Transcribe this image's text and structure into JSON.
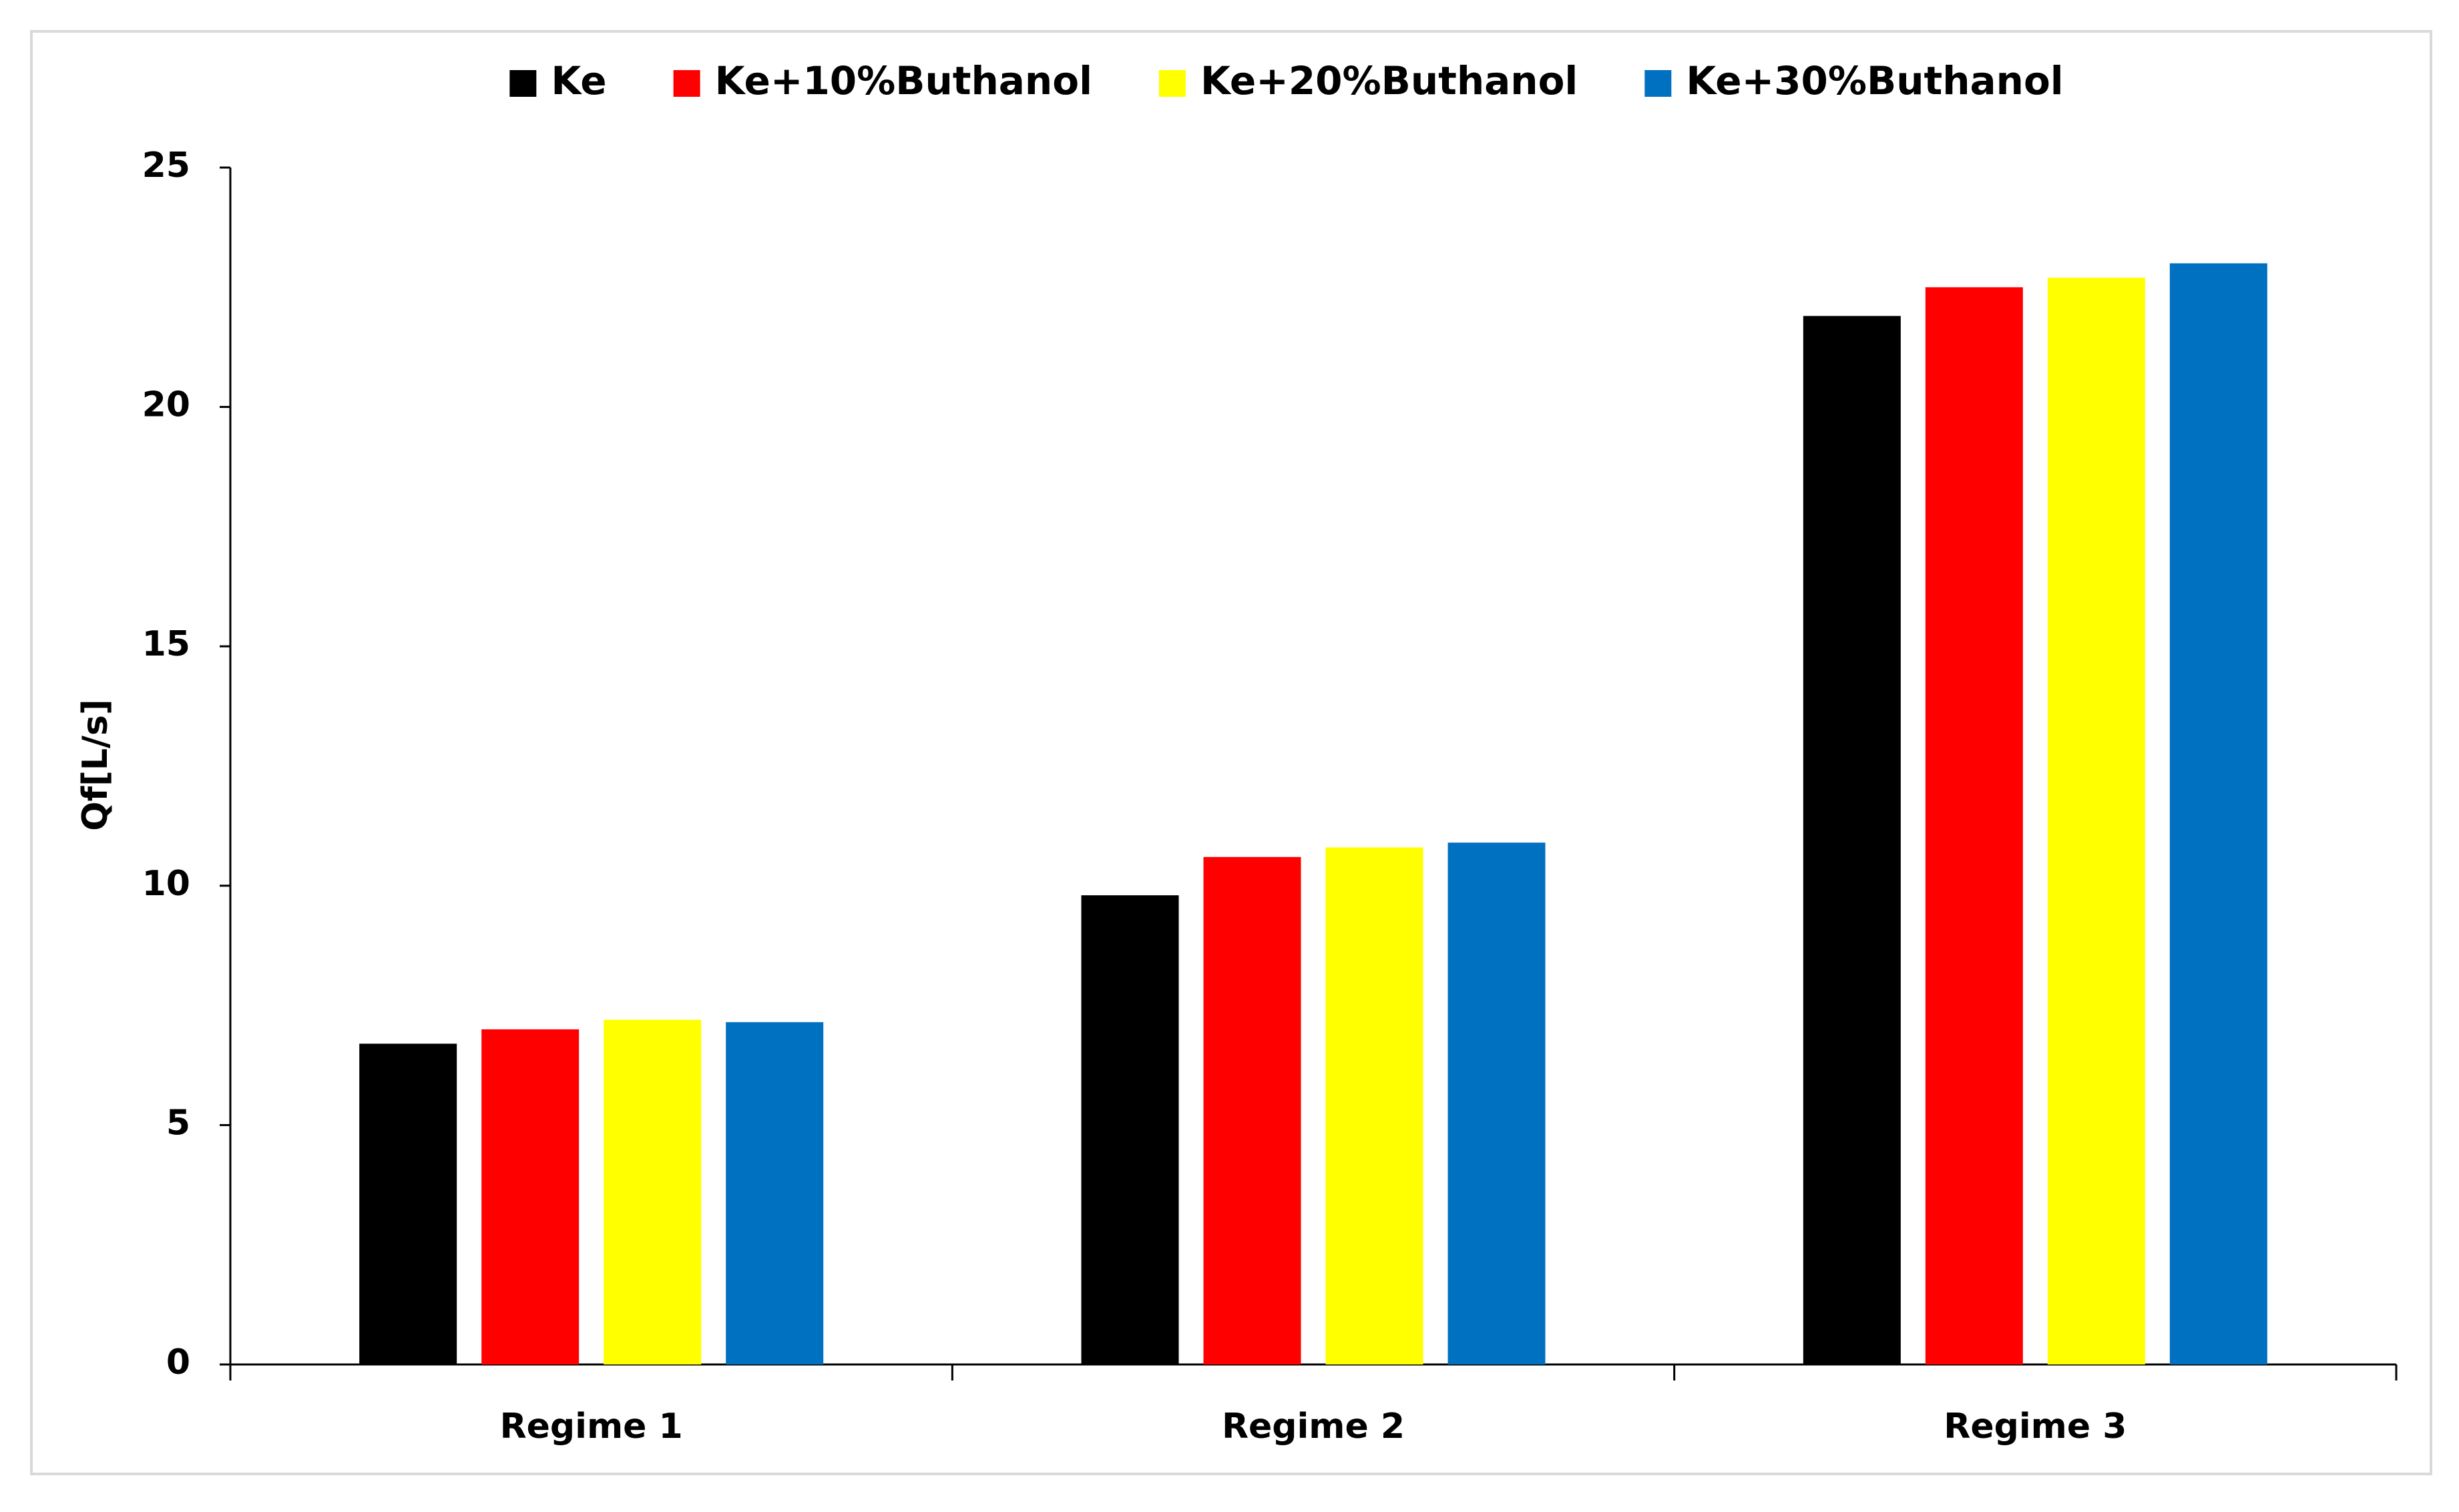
{
  "chart_data": {
    "type": "bar",
    "y_label": "Qf[L/s]",
    "categories": [
      "Regime 1",
      "Regime 2",
      "Regime 3"
    ],
    "series": [
      {
        "name": "Ke",
        "color": "#000000",
        "values": [
          6.7,
          9.8,
          21.9
        ]
      },
      {
        "name": "Ke+10%Buthanol",
        "color": "#ff0000",
        "values": [
          7.0,
          10.6,
          22.5
        ]
      },
      {
        "name": "Ke+20%Buthanol",
        "color": "#ffff00",
        "values": [
          7.2,
          10.8,
          22.7
        ]
      },
      {
        "name": "Ke+30%Buthanol",
        "color": "#0070c0",
        "values": [
          7.15,
          10.9,
          23.0
        ]
      }
    ],
    "ylim": [
      0,
      25
    ],
    "yticks": [
      0,
      5,
      10,
      15,
      20,
      25
    ],
    "legend": "top"
  }
}
